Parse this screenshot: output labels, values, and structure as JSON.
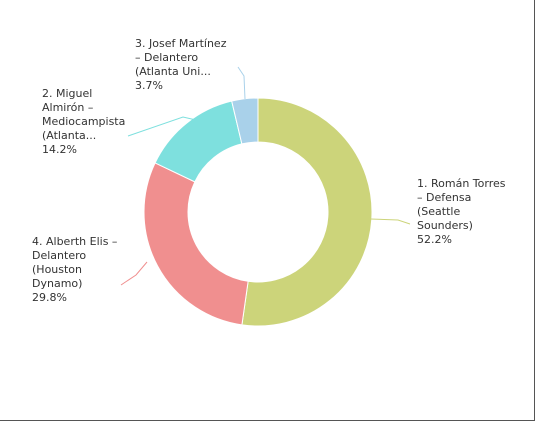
{
  "chart_data": {
    "type": "pie",
    "donut": true,
    "legend": "none",
    "slices": [
      {
        "label_lines": [
          "1. Román Torres",
          "– Defensa",
          "(Seattle",
          "Sounders)"
        ],
        "pct_text": "52.2%",
        "value": 52.2,
        "color": "#ccd47a"
      },
      {
        "label_lines": [
          "4. Alberth Elis –",
          "Delantero",
          "(Houston",
          "Dynamo)"
        ],
        "pct_text": "29.8%",
        "value": 29.8,
        "color": "#f08f8f"
      },
      {
        "label_lines": [
          "2. Miguel",
          "Almirón –",
          "Mediocampista",
          "(Atlanta..."
        ],
        "pct_text": "14.2%",
        "value": 14.2,
        "color": "#7ee0de"
      },
      {
        "label_lines": [
          "3. Josef Martínez",
          "– Delantero",
          "(Atlanta Uni..."
        ],
        "pct_text": "3.7%",
        "value": 3.7,
        "color": "#a9d1ea"
      }
    ]
  }
}
